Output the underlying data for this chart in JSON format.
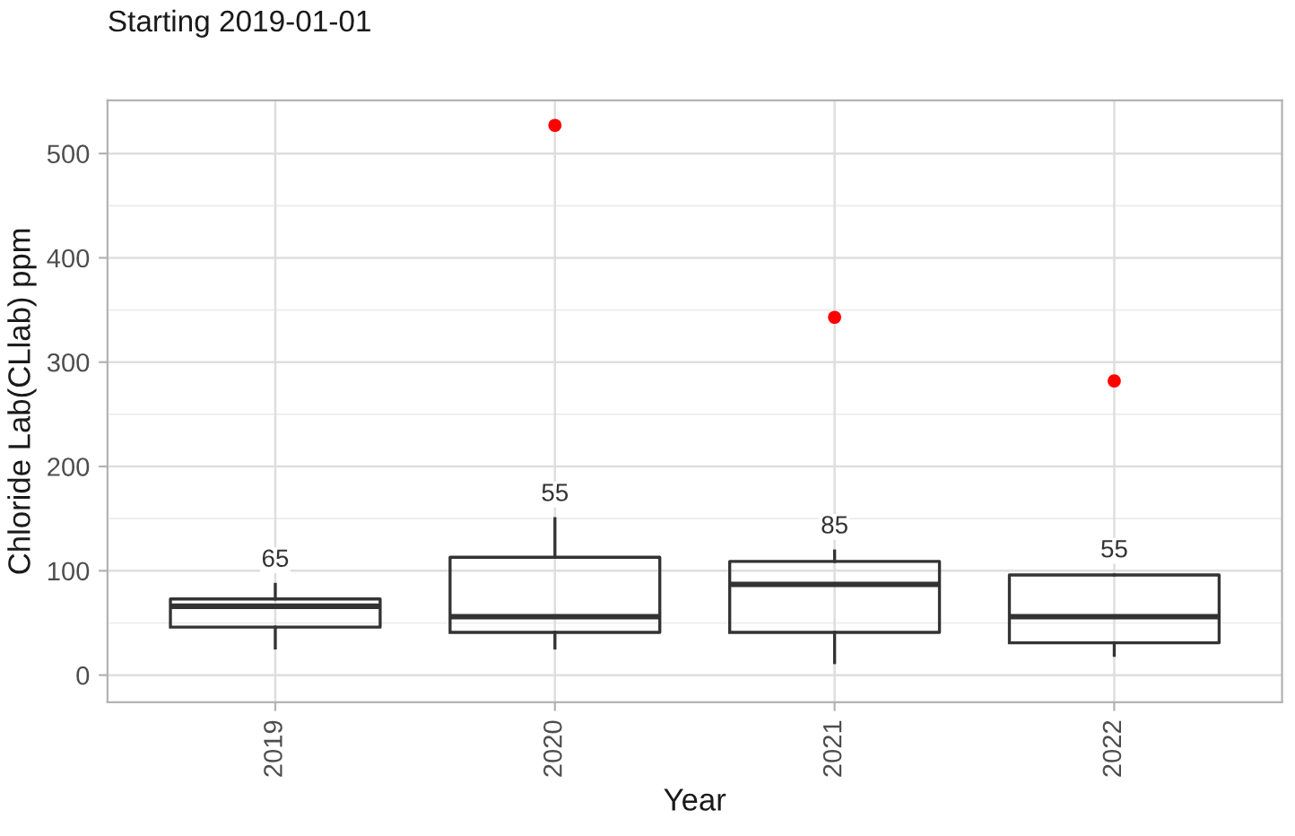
{
  "chart_data": {
    "type": "box",
    "title": "Starting 2019-01-01",
    "xlabel": "Year",
    "ylabel": "Chloride Lab(CLlab) ppm",
    "categories": [
      "2019",
      "2020",
      "2021",
      "2022"
    ],
    "series": [
      {
        "color": "#333333",
        "boxes": [
          {
            "low": 26,
            "q1": 46,
            "median": 66,
            "q3": 73,
            "high": 87
          },
          {
            "low": 26,
            "q1": 41,
            "median": 56,
            "q3": 113,
            "high": 150
          },
          {
            "low": 12,
            "q1": 41,
            "median": 87,
            "q3": 109,
            "high": 119
          },
          {
            "low": 19,
            "q1": 31,
            "median": 56,
            "q3": 96,
            "high": 96
          }
        ]
      },
      {
        "type": "scatter",
        "color": "#ff0000",
        "values": [
          null,
          527,
          343,
          282
        ]
      }
    ],
    "annotations": [
      "65",
      "55",
      "85",
      "55"
    ],
    "ylim": [
      -26,
      551
    ],
    "yticks": [
      0,
      100,
      200,
      300,
      400,
      500
    ],
    "grid": true
  }
}
